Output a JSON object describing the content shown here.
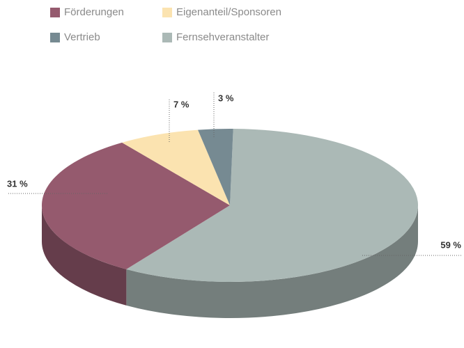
{
  "chart_data": {
    "type": "pie",
    "categories": [
      "Förderungen",
      "Eigenanteil/Sponsoren",
      "Vertrieb",
      "Fernsehveranstalter"
    ],
    "series": [
      {
        "name": "Anteil",
        "values": [
          31,
          7,
          3,
          59
        ],
        "value_labels": [
          "31 %",
          "7 %",
          "3 %",
          "59 %"
        ]
      }
    ],
    "colors": [
      "#955a6e",
      "#fbe3b0",
      "#768a92",
      "#abb9b6"
    ],
    "legend": "top-left"
  }
}
